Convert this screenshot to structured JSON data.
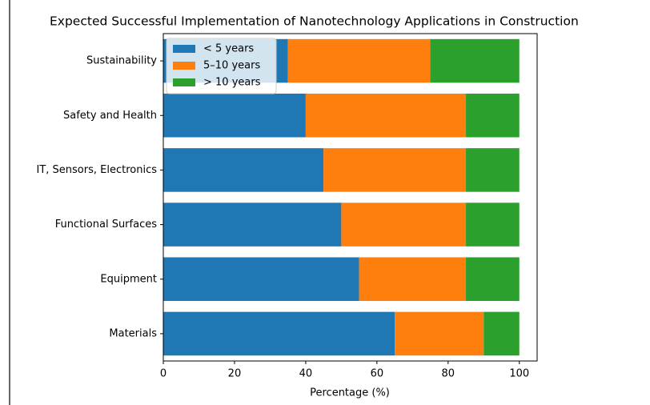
{
  "chart_data": {
    "type": "stacked_barh",
    "title": "Expected Successful Implementation of Nanotechnology Applications in Construction",
    "xlabel": "Percentage (%)",
    "categories": [
      "Sustainability",
      "Safety and Health",
      "IT, Sensors, Electronics",
      "Functional Surfaces",
      "Equipment",
      "Materials"
    ],
    "series": [
      {
        "name": "< 5 years",
        "color": "#1f77b4",
        "values": [
          35,
          40,
          45,
          50,
          55,
          65
        ]
      },
      {
        "name": "5–10 years",
        "color": "#ff7f0e",
        "values": [
          40,
          45,
          40,
          35,
          30,
          25
        ]
      },
      {
        "name": "> 10 years",
        "color": "#2ca02c",
        "values": [
          25,
          15,
          15,
          15,
          15,
          10
        ]
      }
    ],
    "xlim": [
      0,
      105
    ],
    "xticks": [
      0,
      20,
      40,
      60,
      80,
      100
    ],
    "legend": "upper left"
  }
}
